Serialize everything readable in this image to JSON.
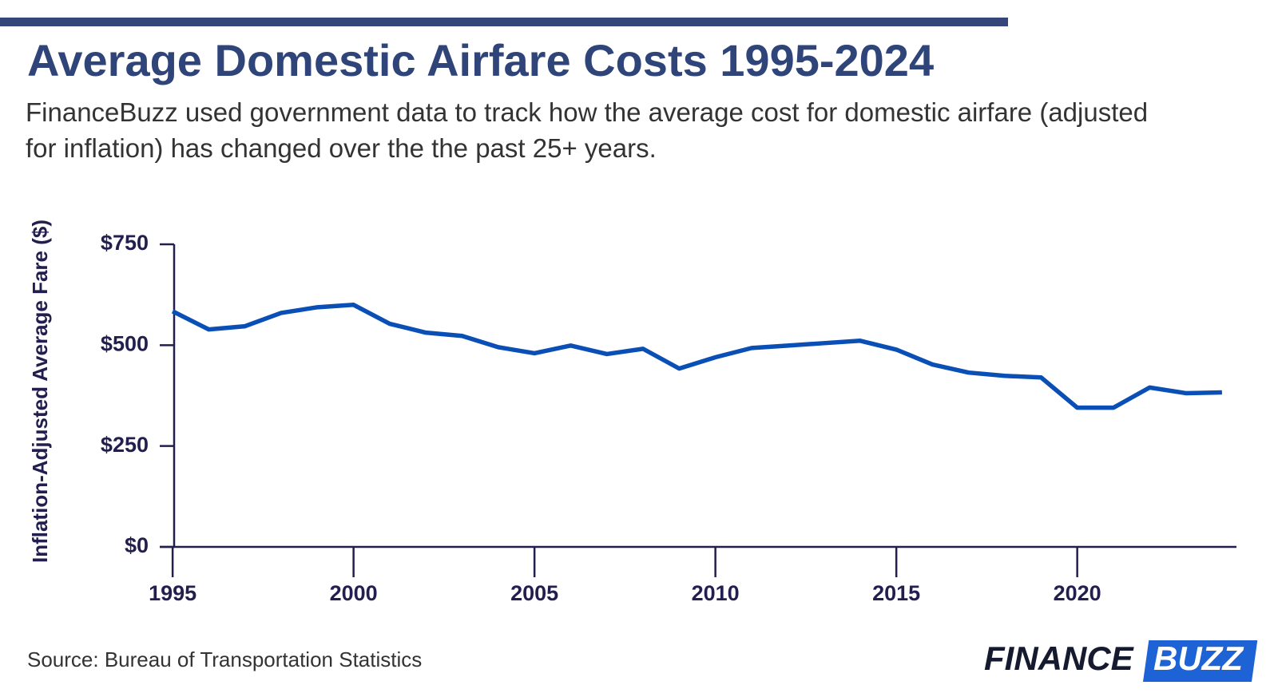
{
  "chart_data": {
    "type": "line",
    "title": "Average Domestic Airfare Costs 1995-2024",
    "subtitle": "FinanceBuzz used government data to track how the average cost for domestic airfare (adjusted for inflation) has changed over the the past 25+ years.",
    "y_label": "Inflation-Adjusted Average Fare ($)",
    "source": "Source: Bureau of Transportation Statistics",
    "brand": [
      "FINANCE",
      "BUZZ"
    ],
    "x": [
      1995,
      1996,
      1997,
      1998,
      1999,
      2000,
      2001,
      2002,
      2003,
      2004,
      2005,
      2006,
      2007,
      2008,
      2009,
      2010,
      2011,
      2012,
      2013,
      2014,
      2015,
      2016,
      2017,
      2018,
      2019,
      2020,
      2021,
      2022,
      2023,
      2024
    ],
    "series": [
      {
        "color": "#0a4fb5",
        "values": [
          584,
          539,
          547,
          580,
          594,
          600,
          553,
          531,
          523,
          495,
          480,
          499,
          478,
          491,
          442,
          470,
          493,
          499,
          505,
          511,
          489,
          452,
          432,
          424,
          420,
          345,
          345,
          395,
          381,
          383
        ]
      }
    ],
    "xlim": [
      1994.6,
      2024.4
    ],
    "xticks": [
      1995,
      2000,
      2005,
      2010,
      2015,
      2020
    ],
    "ylim": [
      0,
      750
    ],
    "yticks": [
      {
        "value": 0,
        "label": "$0"
      },
      {
        "value": 250,
        "label": "$250"
      },
      {
        "value": 500,
        "label": "$500"
      },
      {
        "value": 750,
        "label": "$750"
      }
    ]
  }
}
